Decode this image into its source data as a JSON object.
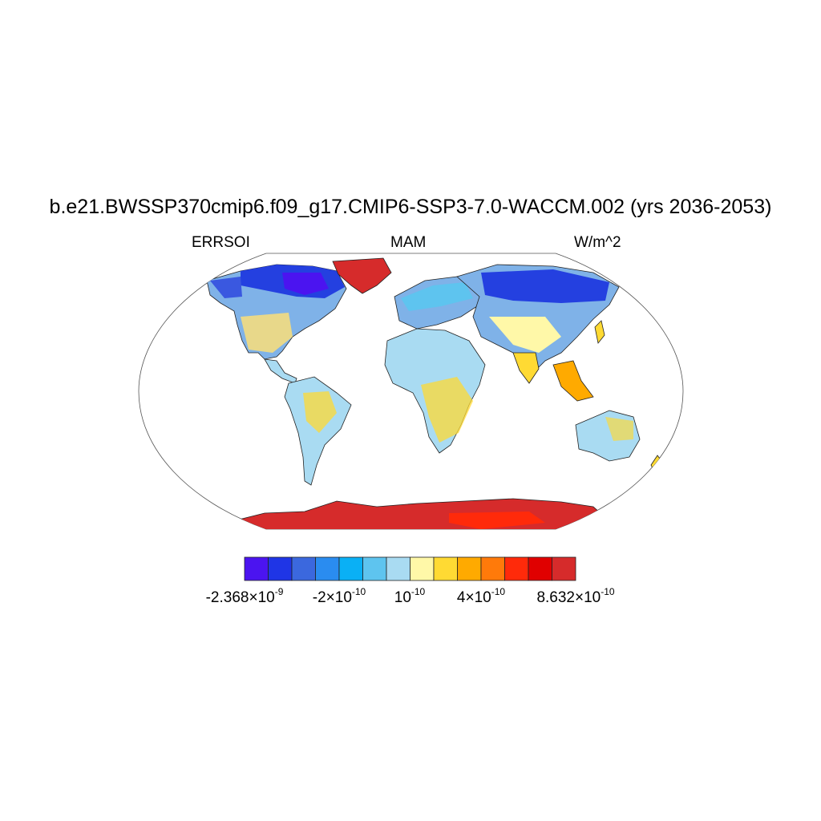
{
  "title": "b.e21.BWSSP370cmip6.f09_g17.CMIP6-SSP3-7.0-WACCM.002 (yrs 2036-2053)",
  "left_label": "ERRSOI",
  "center_label": "MAM",
  "right_label": "W/m^2",
  "colorbar": {
    "colors": [
      "#4b14f0",
      "#1f35e6",
      "#3b68de",
      "#2a8cf0",
      "#0ab0f5",
      "#5ec4ef",
      "#a9dbf2",
      "#fff8a8",
      "#ffda33",
      "#ffaa00",
      "#ff7a0a",
      "#ff2a0a",
      "#e00000",
      "#d62b2b"
    ],
    "labels": [
      {
        "mantissa": "-2.368×10",
        "exponent": "-9"
      },
      {
        "mantissa": "-2×10",
        "exponent": "-10"
      },
      {
        "mantissa": "10",
        "exponent": "-10"
      },
      {
        "mantissa": "4×10",
        "exponent": "-10"
      },
      {
        "mantissa": "8.632×10",
        "exponent": "-10"
      }
    ]
  }
}
